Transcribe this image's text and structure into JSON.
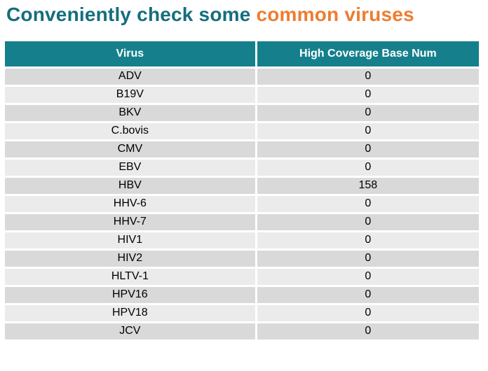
{
  "title": {
    "prefix": "Conveniently check some ",
    "highlight": "common viruses"
  },
  "colors": {
    "title_teal": "#156e7d",
    "title_orange": "#ed7d31",
    "header_background": "#15808c",
    "row_alternate_dark": "#d9d9d9",
    "row_alternate_light": "#ebebeb"
  },
  "table": {
    "columns": [
      "Virus",
      "High Coverage Base Num"
    ],
    "rows": [
      [
        "ADV",
        "0"
      ],
      [
        "B19V",
        "0"
      ],
      [
        "BKV",
        "0"
      ],
      [
        "C.bovis",
        "0"
      ],
      [
        "CMV",
        "0"
      ],
      [
        "EBV",
        "0"
      ],
      [
        "HBV",
        "158"
      ],
      [
        "HHV-6",
        "0"
      ],
      [
        "HHV-7",
        "0"
      ],
      [
        "HIV1",
        "0"
      ],
      [
        "HIV2",
        "0"
      ],
      [
        "HLTV-1",
        "0"
      ],
      [
        "HPV16",
        "0"
      ],
      [
        "HPV18",
        "0"
      ],
      [
        "JCV",
        "0"
      ]
    ]
  }
}
